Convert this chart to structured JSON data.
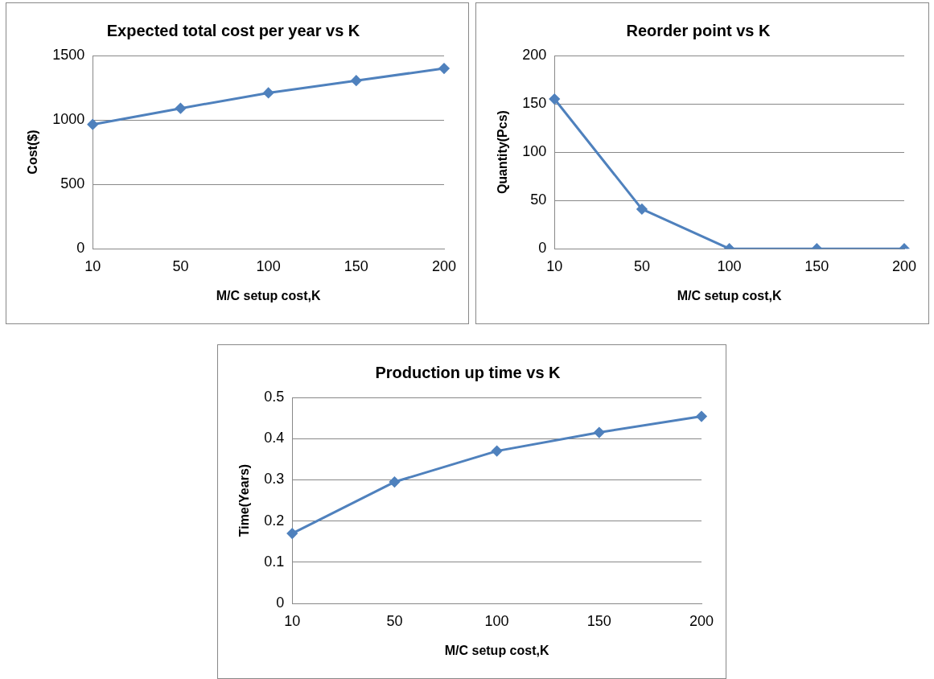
{
  "chart_data": [
    {
      "type": "line",
      "title": "Expected total cost per year vs K",
      "xlabel": "M/C setup cost,K",
      "ylabel": "Cost($)",
      "categories": [
        "10",
        "50",
        "100",
        "150",
        "200"
      ],
      "series": [
        {
          "color": "#4f81bd",
          "values": [
            965,
            1090,
            1210,
            1305,
            1400
          ]
        }
      ],
      "ylim": [
        0,
        1500
      ],
      "yticks": [
        0,
        500,
        1000,
        1500
      ],
      "grid": "y",
      "legend": false,
      "marker": "diamond",
      "line_style": "solid"
    },
    {
      "type": "line",
      "title": "Reorder point vs K",
      "xlabel": "M/C setup cost,K",
      "ylabel": "Quantity(Pcs)",
      "categories": [
        "10",
        "50",
        "100",
        "150",
        "200"
      ],
      "series": [
        {
          "color": "#4f81bd",
          "values": [
            155,
            41,
            0,
            0,
            0
          ]
        }
      ],
      "ylim": [
        0,
        200
      ],
      "yticks": [
        0,
        50,
        100,
        150,
        200
      ],
      "grid": "y",
      "legend": false,
      "marker": "diamond",
      "line_style": "solid"
    },
    {
      "type": "line",
      "title": "Production up time vs K",
      "xlabel": "M/C setup cost,K",
      "ylabel": "Time(Years)",
      "categories": [
        "10",
        "50",
        "100",
        "150",
        "200"
      ],
      "series": [
        {
          "color": "#4f81bd",
          "values": [
            0.17,
            0.295,
            0.37,
            0.415,
            0.454
          ]
        }
      ],
      "ylim": [
        0,
        0.5
      ],
      "yticks": [
        0,
        0.1,
        0.2,
        0.3,
        0.4,
        0.5
      ],
      "grid": "y",
      "legend": false,
      "marker": "diamond",
      "line_style": "solid"
    }
  ]
}
